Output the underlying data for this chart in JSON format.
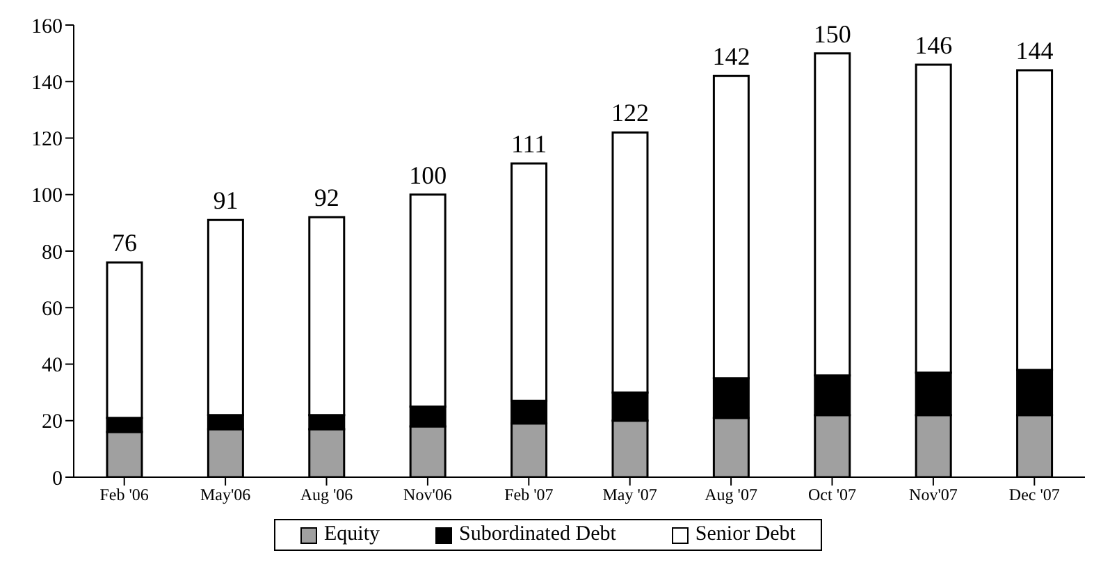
{
  "chart_data": {
    "type": "bar",
    "stacked": true,
    "categories": [
      "Feb '06",
      "May'06",
      "Aug '06",
      "Nov'06",
      "Feb '07",
      "May '07",
      "Aug '07",
      "Oct '07",
      "Nov'07",
      "Dec '07"
    ],
    "series": [
      {
        "name": "Equity",
        "color": "#a0a0a0",
        "values": [
          16,
          17,
          17,
          18,
          19,
          20,
          21,
          22,
          22,
          22
        ]
      },
      {
        "name": "Subordinated Debt",
        "color": "#000000",
        "values": [
          5,
          5,
          5,
          7,
          8,
          10,
          14,
          14,
          15,
          16
        ]
      },
      {
        "name": "Senior Debt",
        "color": "#ffffff",
        "values": [
          55,
          69,
          70,
          75,
          84,
          92,
          107,
          114,
          109,
          106
        ]
      }
    ],
    "totals": [
      "76",
      "91",
      "92",
      "100",
      "111",
      "122",
      "142",
      "150",
      "146",
      "144"
    ],
    "ylim": [
      0,
      160
    ],
    "yticks": [
      0,
      20,
      40,
      60,
      80,
      100,
      120,
      140,
      160
    ],
    "grid": false,
    "legend": "bottom"
  }
}
